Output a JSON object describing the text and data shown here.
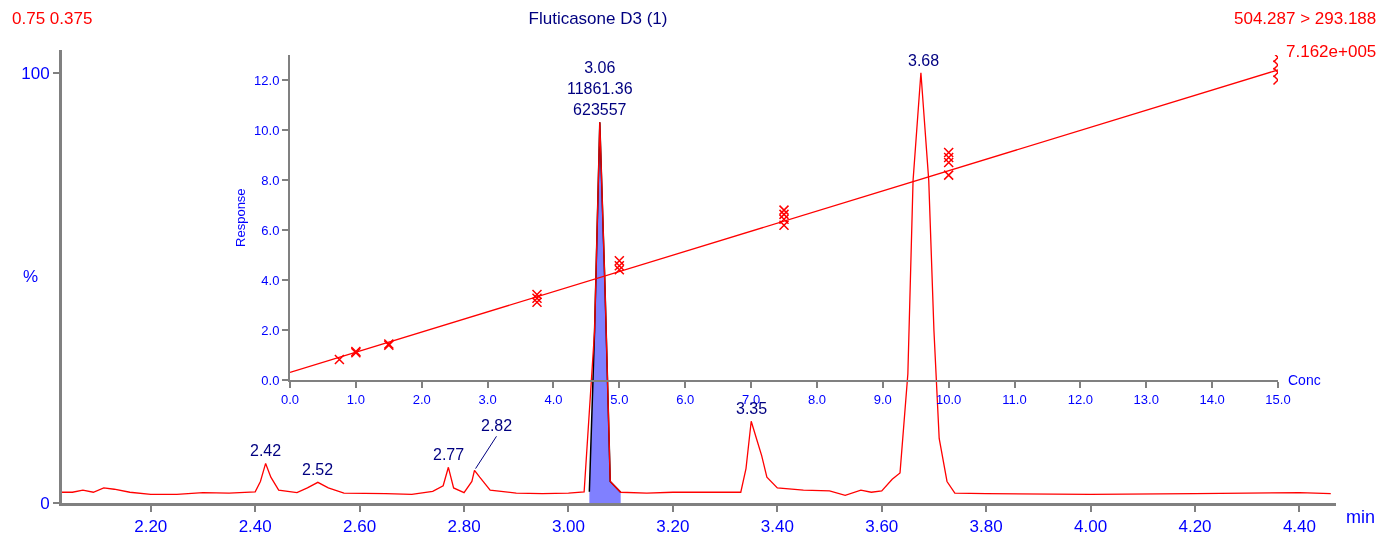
{
  "chart_data": [
    {
      "type": "line",
      "title": "Fluticasone D3 (1)",
      "xlabel": "min",
      "ylabel": "%",
      "x": [
        2.03,
        2.05,
        2.07,
        2.09,
        2.11,
        2.13,
        2.16,
        2.2,
        2.25,
        2.3,
        2.35,
        2.4,
        2.41,
        2.42,
        2.43,
        2.445,
        2.48,
        2.5,
        2.52,
        2.54,
        2.57,
        2.65,
        2.7,
        2.74,
        2.76,
        2.77,
        2.78,
        2.8,
        2.815,
        2.82,
        2.83,
        2.85,
        2.9,
        2.95,
        3.0,
        3.03,
        3.05,
        3.06,
        3.07,
        3.08,
        3.1,
        3.15,
        3.2,
        3.25,
        3.3,
        3.33,
        3.34,
        3.35,
        3.36,
        3.37,
        3.38,
        3.4,
        3.45,
        3.5,
        3.53,
        3.56,
        3.58,
        3.6,
        3.62,
        3.635,
        3.65,
        3.66,
        3.675,
        3.69,
        3.7,
        3.71,
        3.725,
        3.74,
        3.8,
        4.0,
        4.2,
        4.4,
        4.46
      ],
      "series": [
        {
          "color": "#ff0000",
          "values": [
            2.5,
            2.5,
            3.0,
            2.5,
            3.5,
            3.2,
            2.5,
            2.0,
            2.0,
            2.4,
            2.3,
            2.6,
            5,
            9.2,
            6,
            3.0,
            2.4,
            3.5,
            4.8,
            3.5,
            2.3,
            2.2,
            2.0,
            2.7,
            4,
            8.3,
            3.5,
            2.4,
            5,
            7.6,
            6,
            3,
            2.3,
            2.2,
            2.3,
            2.6,
            40,
            88.5,
            50,
            5,
            2.5,
            2.3,
            2.5,
            2.5,
            2.5,
            2.5,
            8,
            19,
            15,
            11,
            6,
            3.5,
            3.0,
            2.8,
            1.8,
            3.0,
            2.5,
            2.8,
            5.5,
            7,
            30,
            75,
            100,
            75,
            40,
            15,
            5,
            2.3,
            2.2,
            2.0,
            2.2,
            2.4,
            2.2
          ]
        },
        {
          "type": "area",
          "color": "#8080ff",
          "x": [
            3.04,
            3.05,
            3.06,
            3.07,
            3.08,
            3.1
          ],
          "values": [
            2.6,
            40,
            88.5,
            50,
            5,
            2.5
          ]
        }
      ],
      "xlim": [
        2.03,
        4.47
      ],
      "xticks": [
        {
          "value": 2.2,
          "label": "2.20"
        },
        {
          "value": 2.4,
          "label": "2.40"
        },
        {
          "value": 2.6,
          "label": "2.60"
        },
        {
          "value": 2.8,
          "label": "2.80"
        },
        {
          "value": 3.0,
          "label": "3.00"
        },
        {
          "value": 3.2,
          "label": "3.20"
        },
        {
          "value": 3.4,
          "label": "3.40"
        },
        {
          "value": 3.6,
          "label": "3.60"
        },
        {
          "value": 3.8,
          "label": "3.80"
        },
        {
          "value": 4.0,
          "label": "4.00"
        },
        {
          "value": 4.2,
          "label": "4.20"
        },
        {
          "value": 4.4,
          "label": "4.40"
        }
      ],
      "ylim": [
        0,
        105.3
      ],
      "yticks": [
        0,
        100
      ],
      "annotations": [
        {
          "text": "2.42",
          "x": 2.42,
          "y": 9.2
        },
        {
          "text": "2.52",
          "x": 2.52,
          "y": 4.8
        },
        {
          "text": "2.77",
          "x": 2.77,
          "y": 8.3
        },
        {
          "text": "2.82",
          "x": 2.82,
          "y": 7.6
        },
        {
          "text": "3.06\n11861.36\n623557",
          "x": 3.06,
          "y": 88.5
        },
        {
          "text": "3.35",
          "x": 3.35,
          "y": 19
        },
        {
          "text": "3.68",
          "x": 3.68,
          "y": 100
        },
        "0.75 0.375",
        "504.287 > 293.188",
        "7.162e+005"
      ],
      "marker": "none",
      "line_style": "solid"
    },
    {
      "type": "scatter",
      "xlabel": "Conc",
      "ylabel": "Response",
      "series": [
        {
          "color": "#ff0000",
          "x": [
            0.75,
            1.0,
            1.0,
            1.5,
            1.5,
            3.75,
            3.75,
            3.75,
            5.0,
            5.0,
            5.0,
            7.5,
            7.5,
            7.5,
            7.5,
            10.0,
            10.0,
            10.0,
            10.0,
            15.0,
            15.0,
            15.0,
            15.0
          ],
          "values": [
            0.83,
            1.1,
            1.15,
            1.4,
            1.45,
            3.12,
            3.28,
            3.43,
            4.42,
            4.58,
            4.78,
            6.2,
            6.44,
            6.63,
            6.8,
            8.2,
            8.7,
            8.9,
            9.1,
            12.0,
            12.3,
            12.6,
            12.9
          ]
        },
        {
          "type": "line",
          "marker": "none",
          "color": "#ff0000",
          "x": [
            0,
            15
          ],
          "values": [
            0.32,
            12.4
          ]
        }
      ],
      "xlim": [
        0,
        15
      ],
      "xticks": [
        {
          "value": 0,
          "label": "0.0"
        },
        {
          "value": 1,
          "label": "1.0"
        },
        {
          "value": 2,
          "label": "2.0"
        },
        {
          "value": 3,
          "label": "3.0"
        },
        {
          "value": 4,
          "label": "4.0"
        },
        {
          "value": 5,
          "label": "5.0"
        },
        {
          "value": 6,
          "label": "6.0"
        },
        {
          "value": 7,
          "label": "7.0"
        },
        {
          "value": 8,
          "label": "8.0"
        },
        {
          "value": 9,
          "label": "9.0"
        },
        {
          "value": 10,
          "label": "10.0"
        },
        {
          "value": 11,
          "label": "11.0"
        },
        {
          "value": 12,
          "label": "12.0"
        },
        {
          "value": 13,
          "label": "13.0"
        },
        {
          "value": 14,
          "label": "14.0"
        },
        {
          "value": 15,
          "label": "15.0"
        }
      ],
      "ylim": [
        0,
        13
      ],
      "yticks": [
        {
          "value": 0,
          "label": "0.0"
        },
        {
          "value": 2,
          "label": "2.0"
        },
        {
          "value": 4,
          "label": "4.0"
        },
        {
          "value": 6,
          "label": "6.0"
        },
        {
          "value": 8,
          "label": "8.0"
        },
        {
          "value": 10,
          "label": "10.0"
        },
        {
          "value": 12,
          "label": "12.0"
        }
      ],
      "marker": "cross"
    }
  ]
}
